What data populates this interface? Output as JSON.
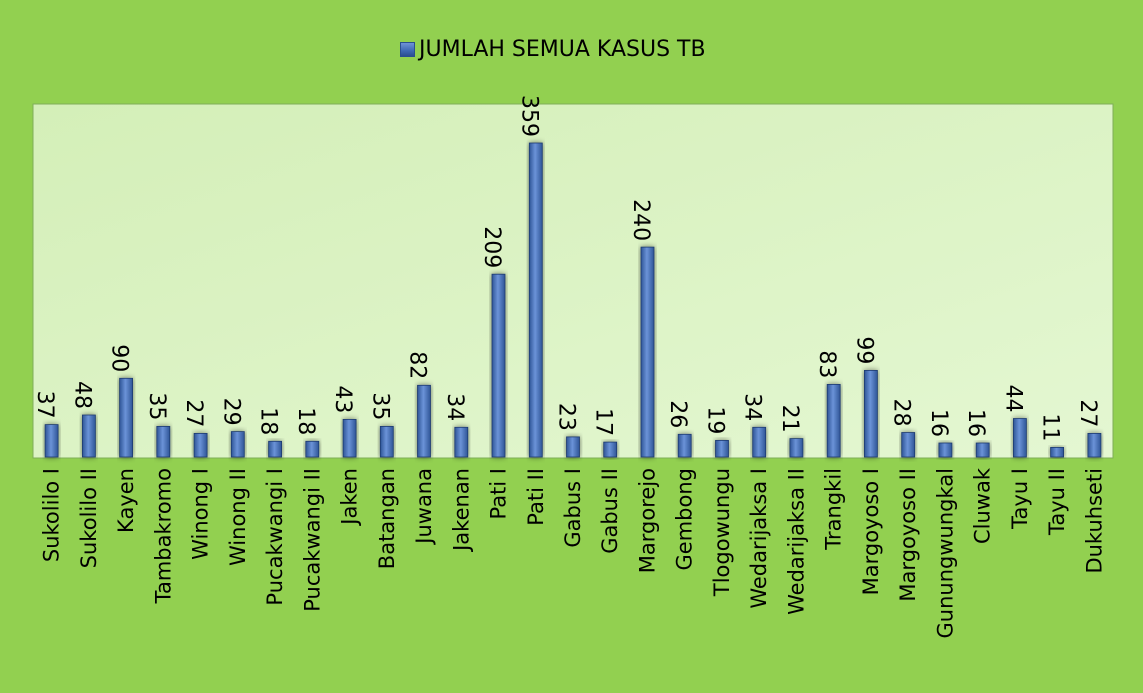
{
  "chart_data": {
    "type": "bar",
    "legend": "JUMLAH SEMUA KASUS TB",
    "legend_position": "top",
    "series": [
      {
        "name": "JUMLAH SEMUA KASUS TB",
        "color": "#4472c4",
        "values": [
          37,
          48,
          90,
          35,
          27,
          29,
          18,
          18,
          43,
          35,
          82,
          34,
          209,
          359,
          23,
          17,
          240,
          26,
          19,
          34,
          21,
          83,
          99,
          28,
          16,
          16,
          44,
          11,
          27
        ]
      }
    ],
    "categories": [
      "Sukolilo I",
      "Sukolilo II",
      "Kayen",
      "Tambakromo",
      "Winong I",
      "Winong II",
      "Pucakwangi I",
      "Pucakwangi II",
      "Jaken",
      "Batangan",
      "Juwana",
      "Jakenan",
      "Pati I",
      "Pati II",
      "Gabus I",
      "Gabus II",
      "Margorejo",
      "Gembong",
      "Tlogowungu",
      "Wedarijaksa I",
      "Wedarijaksa II",
      "Trangkil",
      "Margoyoso I",
      "Margoyoso II",
      "Gunungwungkal",
      "Cluwak",
      "Tayu I",
      "Tayu II",
      "Dukuhseti"
    ],
    "ylim": [
      0,
      400
    ],
    "grid": false,
    "data_labels": true
  }
}
